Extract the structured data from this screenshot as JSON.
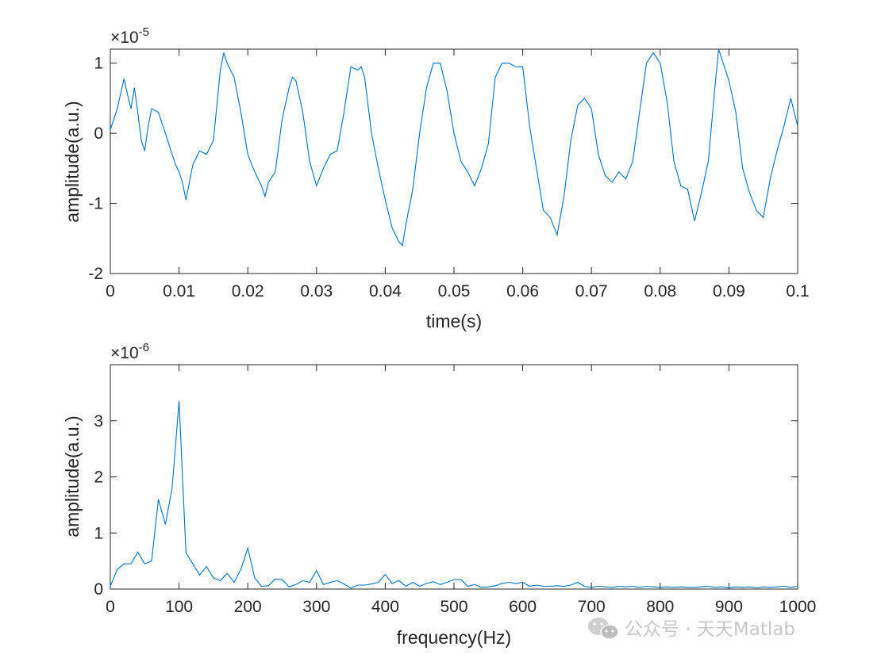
{
  "chart_data": [
    {
      "type": "line",
      "title": "",
      "xlabel": "time(s)",
      "ylabel": "amplitude(a.u.)",
      "y_exponent_label": "×10",
      "y_exponent": "-5",
      "xlim": [
        0,
        0.1
      ],
      "ylim": [
        -2,
        1.2
      ],
      "x_ticks": [
        0,
        0.01,
        0.02,
        0.03,
        0.04,
        0.05,
        0.06,
        0.07,
        0.08,
        0.09,
        0.1
      ],
      "x_tick_labels": [
        "0",
        "0.01",
        "0.02",
        "0.03",
        "0.04",
        "0.05",
        "0.06",
        "0.07",
        "0.08",
        "0.09",
        "0.1"
      ],
      "y_ticks": [
        -2,
        -1,
        0,
        1
      ],
      "y_tick_labels": [
        "-2",
        "-1",
        "0",
        "1"
      ],
      "grid": false,
      "line_color": "#0072bd",
      "series": [
        {
          "x": [
            0,
            0.001,
            0.002,
            0.0025,
            0.003,
            0.0035,
            0.004,
            0.0045,
            0.005,
            0.0055,
            0.006,
            0.007,
            0.008,
            0.009,
            0.0095,
            0.01,
            0.0105,
            0.011,
            0.0115,
            0.012,
            0.013,
            0.014,
            0.015,
            0.016,
            0.0165,
            0.017,
            0.018,
            0.019,
            0.02,
            0.021,
            0.022,
            0.0225,
            0.023,
            0.024,
            0.025,
            0.026,
            0.0265,
            0.027,
            0.028,
            0.029,
            0.03,
            0.031,
            0.032,
            0.033,
            0.034,
            0.035,
            0.036,
            0.0365,
            0.037,
            0.038,
            0.039,
            0.04,
            0.041,
            0.042,
            0.0425,
            0.043,
            0.044,
            0.045,
            0.046,
            0.047,
            0.048,
            0.049,
            0.05,
            0.051,
            0.052,
            0.053,
            0.054,
            0.055,
            0.056,
            0.057,
            0.058,
            0.059,
            0.06,
            0.061,
            0.062,
            0.063,
            0.064,
            0.065,
            0.066,
            0.067,
            0.068,
            0.069,
            0.07,
            0.071,
            0.072,
            0.073,
            0.074,
            0.075,
            0.076,
            0.077,
            0.078,
            0.079,
            0.08,
            0.081,
            0.082,
            0.083,
            0.084,
            0.085,
            0.086,
            0.087,
            0.088,
            0.0885,
            0.089,
            0.09,
            0.091,
            0.092,
            0.093,
            0.094,
            0.095,
            0.096,
            0.097,
            0.098,
            0.099,
            0.1
          ],
          "y": [
            0.05,
            0.35,
            0.78,
            0.55,
            0.35,
            0.65,
            0.3,
            -0.1,
            -0.25,
            0.1,
            0.35,
            0.3,
            0.0,
            -0.3,
            -0.45,
            -0.55,
            -0.7,
            -0.95,
            -0.7,
            -0.45,
            -0.25,
            -0.3,
            -0.1,
            0.9,
            1.15,
            1.0,
            0.8,
            0.3,
            -0.3,
            -0.55,
            -0.75,
            -0.9,
            -0.7,
            -0.55,
            0.2,
            0.65,
            0.8,
            0.75,
            0.3,
            -0.4,
            -0.75,
            -0.5,
            -0.3,
            -0.25,
            0.3,
            0.95,
            0.9,
            0.95,
            0.8,
            0.0,
            -0.5,
            -0.95,
            -1.35,
            -1.55,
            -1.6,
            -1.3,
            -0.8,
            0.0,
            0.65,
            1.0,
            1.0,
            0.6,
            0.0,
            -0.4,
            -0.55,
            -0.75,
            -0.5,
            -0.15,
            0.8,
            1.0,
            1.0,
            0.95,
            0.95,
            0.1,
            -0.5,
            -1.1,
            -1.2,
            -1.45,
            -0.9,
            -0.1,
            0.4,
            0.5,
            0.35,
            -0.3,
            -0.6,
            -0.7,
            -0.55,
            -0.65,
            -0.4,
            0.3,
            1.0,
            1.15,
            1.0,
            0.45,
            -0.4,
            -0.75,
            -0.8,
            -1.25,
            -0.85,
            -0.4,
            0.7,
            1.2,
            1.05,
            0.75,
            0.3,
            -0.5,
            -0.85,
            -1.1,
            -1.2,
            -0.65,
            -0.25,
            0.1,
            0.5,
            0.1
          ]
        }
      ]
    },
    {
      "type": "line",
      "title": "",
      "xlabel": "frequency(Hz)",
      "ylabel": "amplitude(a.u.)",
      "y_exponent_label": "×10",
      "y_exponent": "-6",
      "xlim": [
        0,
        1000
      ],
      "ylim": [
        0,
        4
      ],
      "x_ticks": [
        0,
        100,
        200,
        300,
        400,
        500,
        600,
        700,
        800,
        900,
        1000
      ],
      "x_tick_labels": [
        "0",
        "100",
        "200",
        "300",
        "400",
        "500",
        "600",
        "700",
        "800",
        "900",
        "1000"
      ],
      "y_ticks": [
        0,
        1,
        2,
        3
      ],
      "y_tick_labels": [
        "0",
        "1",
        "2",
        "3"
      ],
      "grid": false,
      "line_color": "#0072bd",
      "series": [
        {
          "x": [
            0,
            10,
            20,
            30,
            40,
            50,
            60,
            70,
            80,
            90,
            100,
            110,
            120,
            130,
            140,
            150,
            160,
            170,
            180,
            190,
            200,
            210,
            220,
            230,
            240,
            250,
            260,
            270,
            280,
            290,
            300,
            310,
            320,
            330,
            340,
            350,
            360,
            370,
            380,
            390,
            400,
            410,
            420,
            430,
            440,
            450,
            460,
            470,
            480,
            490,
            500,
            510,
            520,
            530,
            540,
            550,
            560,
            570,
            580,
            590,
            600,
            610,
            620,
            630,
            640,
            650,
            660,
            670,
            680,
            690,
            700,
            710,
            720,
            730,
            740,
            750,
            760,
            770,
            780,
            790,
            800,
            810,
            820,
            830,
            840,
            850,
            860,
            870,
            880,
            890,
            900,
            910,
            920,
            930,
            940,
            950,
            960,
            970,
            980,
            990,
            1000
          ],
          "y": [
            0.05,
            0.35,
            0.45,
            0.45,
            0.66,
            0.45,
            0.5,
            1.6,
            1.15,
            1.8,
            3.35,
            0.65,
            0.45,
            0.25,
            0.4,
            0.2,
            0.15,
            0.28,
            0.12,
            0.35,
            0.73,
            0.2,
            0.05,
            0.06,
            0.18,
            0.17,
            0.04,
            0.08,
            0.15,
            0.12,
            0.33,
            0.08,
            0.12,
            0.15,
            0.09,
            0.02,
            0.07,
            0.07,
            0.09,
            0.12,
            0.26,
            0.1,
            0.15,
            0.05,
            0.12,
            0.05,
            0.1,
            0.13,
            0.08,
            0.12,
            0.17,
            0.17,
            0.05,
            0.08,
            0.03,
            0.04,
            0.06,
            0.1,
            0.12,
            0.1,
            0.12,
            0.05,
            0.07,
            0.05,
            0.05,
            0.06,
            0.05,
            0.07,
            0.12,
            0.05,
            0.03,
            0.05,
            0.04,
            0.03,
            0.05,
            0.04,
            0.05,
            0.03,
            0.05,
            0.04,
            0.03,
            0.04,
            0.03,
            0.04,
            0.03,
            0.03,
            0.04,
            0.05,
            0.03,
            0.04,
            0.02,
            0.04,
            0.03,
            0.04,
            0.02,
            0.04,
            0.03,
            0.04,
            0.05,
            0.03,
            0.05
          ]
        }
      ]
    }
  ],
  "watermark": {
    "text": "公众号 · 天天Matlab",
    "icon": "wechat-icon",
    "color": "#c7c7c7"
  }
}
